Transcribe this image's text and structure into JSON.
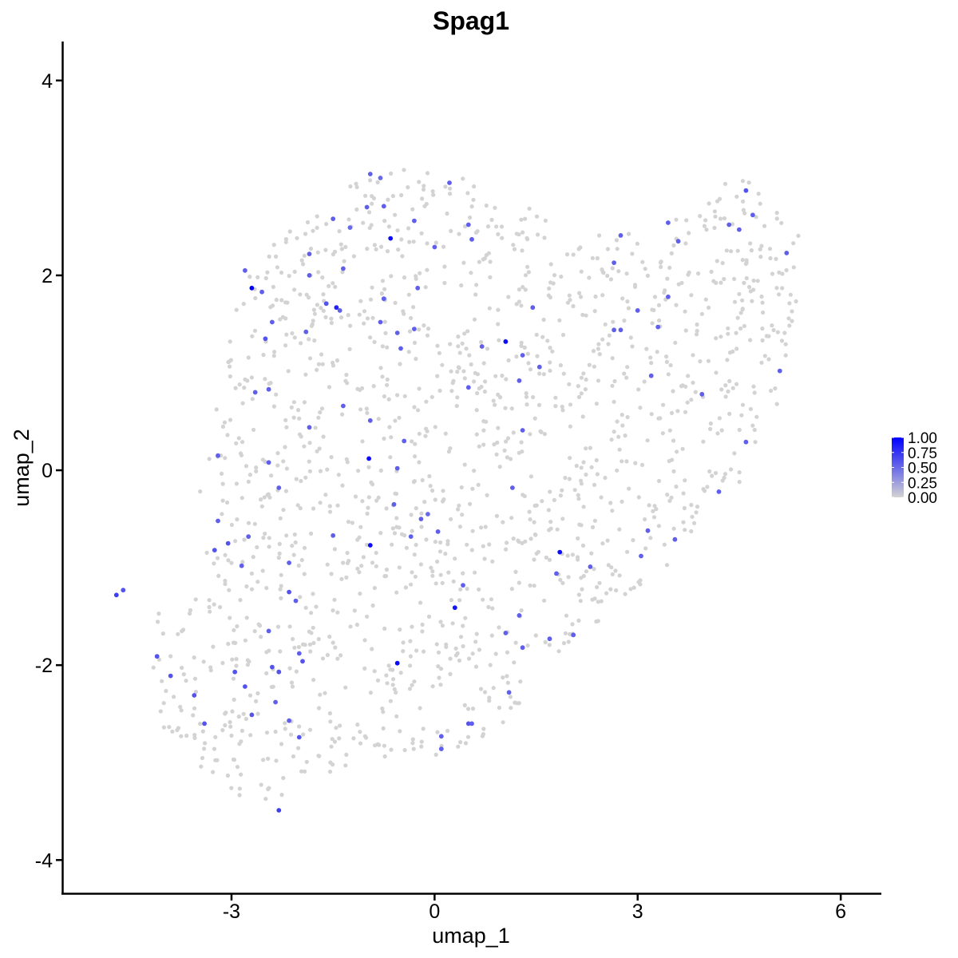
{
  "chart_data": {
    "type": "scatter",
    "title": "Spag1",
    "xlabel": "umap_1",
    "ylabel": "umap_2",
    "xlim": [
      -5.5,
      6.6
    ],
    "ylim": [
      -4.35,
      4.4
    ],
    "x_ticks": [
      -3,
      0,
      3,
      6
    ],
    "y_ticks": [
      -4,
      -2,
      0,
      2,
      4
    ],
    "x_tick_labels": [
      "-3",
      "0",
      "3",
      "6"
    ],
    "y_tick_labels": [
      "-4",
      "-2",
      "0",
      "2",
      "4"
    ],
    "grid": false,
    "legend": {
      "position": "right",
      "type": "colorbar",
      "labels": [
        "1.00",
        "0.75",
        "0.50",
        "0.25",
        "0.00"
      ],
      "values": [
        1.0,
        0.75,
        0.5,
        0.25,
        0.0
      ],
      "low_color": "#d3d3d3",
      "high_color": "#0000ff"
    },
    "background_point_color": "#d3d3d3",
    "background_cells": {
      "region_polygon": [
        [
          -4.75,
          -1.25
        ],
        [
          -4.5,
          -1.2
        ],
        [
          -4.0,
          -1.5
        ],
        [
          -3.5,
          -1.2
        ],
        [
          -3.3,
          -0.6
        ],
        [
          -3.6,
          -0.4
        ],
        [
          -3.3,
          0.2
        ],
        [
          -3.2,
          0.8
        ],
        [
          -3.0,
          1.4
        ],
        [
          -2.9,
          1.9
        ],
        [
          -2.5,
          2.2
        ],
        [
          -2.1,
          2.6
        ],
        [
          -1.6,
          2.7
        ],
        [
          -1.2,
          3.0
        ],
        [
          -0.7,
          3.1
        ],
        [
          0.2,
          3.15
        ],
        [
          0.8,
          2.8
        ],
        [
          1.5,
          2.7
        ],
        [
          2.0,
          2.3
        ],
        [
          2.7,
          2.5
        ],
        [
          3.3,
          2.6
        ],
        [
          4.0,
          2.7
        ],
        [
          4.4,
          3.1
        ],
        [
          4.9,
          2.8
        ],
        [
          5.4,
          2.4
        ],
        [
          5.4,
          1.6
        ],
        [
          5.1,
          0.7
        ],
        [
          4.8,
          0.0
        ],
        [
          4.2,
          -0.4
        ],
        [
          3.6,
          -0.9
        ],
        [
          3.0,
          -1.2
        ],
        [
          2.6,
          -1.6
        ],
        [
          2.0,
          -1.8
        ],
        [
          1.5,
          -2.2
        ],
        [
          1.0,
          -2.6
        ],
        [
          0.5,
          -2.9
        ],
        [
          0.0,
          -3.0
        ],
        [
          -0.6,
          -3.0
        ],
        [
          -1.3,
          -3.2
        ],
        [
          -1.9,
          -3.3
        ],
        [
          -2.4,
          -3.5
        ],
        [
          -3.0,
          -3.3
        ],
        [
          -3.6,
          -3.0
        ],
        [
          -4.1,
          -2.6
        ],
        [
          -4.4,
          -2.0
        ],
        [
          -4.2,
          -1.6
        ]
      ],
      "approx_count": 1500
    },
    "expressing_cells": [
      {
        "x": -2.7,
        "y": 1.87,
        "v": 1.0
      },
      {
        "x": -0.65,
        "y": 2.38,
        "v": 0.95
      },
      {
        "x": 1.05,
        "y": 1.32,
        "v": 0.95
      },
      {
        "x": -1.45,
        "y": 1.67,
        "v": 0.85
      },
      {
        "x": -0.97,
        "y": 0.12,
        "v": 0.95
      },
      {
        "x": -0.95,
        "y": -0.77,
        "v": 0.95
      },
      {
        "x": 1.85,
        "y": -0.84,
        "v": 0.95
      },
      {
        "x": 0.3,
        "y": -1.41,
        "v": 0.9
      },
      {
        "x": -0.55,
        "y": -1.98,
        "v": 0.95
      },
      {
        "x": -4.7,
        "y": -1.28,
        "v": 0.7
      },
      {
        "x": -4.6,
        "y": -1.23,
        "v": 0.6
      },
      {
        "x": -4.1,
        "y": -1.91,
        "v": 0.6
      },
      {
        "x": -3.9,
        "y": -2.11,
        "v": 0.6
      },
      {
        "x": -3.55,
        "y": -2.31,
        "v": 0.6
      },
      {
        "x": -3.4,
        "y": -2.6,
        "v": 0.6
      },
      {
        "x": -3.25,
        "y": -0.82,
        "v": 0.6
      },
      {
        "x": -3.2,
        "y": -0.52,
        "v": 0.55
      },
      {
        "x": -3.05,
        "y": -0.75,
        "v": 0.6
      },
      {
        "x": -3.2,
        "y": 0.15,
        "v": 0.55
      },
      {
        "x": -2.95,
        "y": -2.07,
        "v": 0.6
      },
      {
        "x": -2.8,
        "y": -2.22,
        "v": 0.6
      },
      {
        "x": -2.7,
        "y": -2.51,
        "v": 0.6
      },
      {
        "x": -2.85,
        "y": -0.98,
        "v": 0.55
      },
      {
        "x": -2.75,
        "y": -0.68,
        "v": 0.55
      },
      {
        "x": -2.8,
        "y": 2.05,
        "v": 0.55
      },
      {
        "x": -2.65,
        "y": 0.8,
        "v": 0.55
      },
      {
        "x": -2.55,
        "y": 1.83,
        "v": 0.55
      },
      {
        "x": -2.5,
        "y": 1.35,
        "v": 0.6
      },
      {
        "x": -2.45,
        "y": 0.83,
        "v": 0.55
      },
      {
        "x": -2.45,
        "y": 0.08,
        "v": 0.55
      },
      {
        "x": -2.4,
        "y": 1.52,
        "v": 0.55
      },
      {
        "x": -2.45,
        "y": -1.65,
        "v": 0.55
      },
      {
        "x": -2.4,
        "y": -2.02,
        "v": 0.6
      },
      {
        "x": -2.35,
        "y": -2.38,
        "v": 0.55
      },
      {
        "x": -2.3,
        "y": -2.07,
        "v": 0.6
      },
      {
        "x": -2.3,
        "y": -3.49,
        "v": 0.7
      },
      {
        "x": -2.3,
        "y": -0.18,
        "v": 0.55
      },
      {
        "x": -2.15,
        "y": -0.95,
        "v": 0.55
      },
      {
        "x": -2.15,
        "y": -1.25,
        "v": 0.6
      },
      {
        "x": -2.15,
        "y": -2.57,
        "v": 0.55
      },
      {
        "x": -2.05,
        "y": -1.34,
        "v": 0.55
      },
      {
        "x": -2.0,
        "y": -1.88,
        "v": 0.55
      },
      {
        "x": -2.0,
        "y": -2.74,
        "v": 0.6
      },
      {
        "x": -1.95,
        "y": -1.96,
        "v": 0.6
      },
      {
        "x": -1.9,
        "y": 1.42,
        "v": 0.55
      },
      {
        "x": -1.85,
        "y": 2.22,
        "v": 0.55
      },
      {
        "x": -1.85,
        "y": 2.0,
        "v": 0.55
      },
      {
        "x": -1.85,
        "y": 0.44,
        "v": 0.55
      },
      {
        "x": -1.6,
        "y": 1.71,
        "v": 0.6
      },
      {
        "x": -1.5,
        "y": 2.58,
        "v": 0.55
      },
      {
        "x": -1.4,
        "y": 1.64,
        "v": 0.55
      },
      {
        "x": -1.35,
        "y": 2.07,
        "v": 0.55
      },
      {
        "x": -1.35,
        "y": 0.66,
        "v": 0.55
      },
      {
        "x": -1.5,
        "y": -0.67,
        "v": 0.55
      },
      {
        "x": -1.25,
        "y": 2.49,
        "v": 0.5
      },
      {
        "x": -1.0,
        "y": 2.7,
        "v": 0.55
      },
      {
        "x": -0.95,
        "y": 3.04,
        "v": 0.55
      },
      {
        "x": -0.95,
        "y": 0.51,
        "v": 0.55
      },
      {
        "x": -0.8,
        "y": 3.0,
        "v": 0.5
      },
      {
        "x": -0.75,
        "y": 1.76,
        "v": 0.55
      },
      {
        "x": -0.8,
        "y": 1.52,
        "v": 0.55
      },
      {
        "x": -0.75,
        "y": 2.71,
        "v": 0.55
      },
      {
        "x": -0.55,
        "y": 1.41,
        "v": 0.55
      },
      {
        "x": -0.5,
        "y": 1.25,
        "v": 0.55
      },
      {
        "x": -0.6,
        "y": -0.35,
        "v": 0.55
      },
      {
        "x": -0.55,
        "y": 0.02,
        "v": 0.55
      },
      {
        "x": -0.45,
        "y": 0.3,
        "v": 0.55
      },
      {
        "x": -0.3,
        "y": 2.56,
        "v": 0.55
      },
      {
        "x": -0.3,
        "y": 1.45,
        "v": 0.55
      },
      {
        "x": -0.25,
        "y": 1.87,
        "v": 0.55
      },
      {
        "x": -0.35,
        "y": -0.68,
        "v": 0.55
      },
      {
        "x": -0.2,
        "y": -0.5,
        "v": 0.55
      },
      {
        "x": -0.1,
        "y": -0.45,
        "v": 0.5
      },
      {
        "x": 0.0,
        "y": 2.29,
        "v": 0.55
      },
      {
        "x": 0.05,
        "y": -0.63,
        "v": 0.55
      },
      {
        "x": 0.1,
        "y": -2.73,
        "v": 0.55
      },
      {
        "x": 0.1,
        "y": -2.86,
        "v": 0.55
      },
      {
        "x": 0.22,
        "y": 2.95,
        "v": 0.55
      },
      {
        "x": 0.42,
        "y": -1.18,
        "v": 0.55
      },
      {
        "x": 0.5,
        "y": 2.52,
        "v": 0.55
      },
      {
        "x": 0.5,
        "y": 0.85,
        "v": 0.55
      },
      {
        "x": 0.5,
        "y": -2.6,
        "v": 0.6
      },
      {
        "x": 0.55,
        "y": 2.37,
        "v": 0.55
      },
      {
        "x": 0.55,
        "y": -2.6,
        "v": 0.55
      },
      {
        "x": 0.7,
        "y": 1.27,
        "v": 0.55
      },
      {
        "x": 1.05,
        "y": -1.67,
        "v": 0.55
      },
      {
        "x": 1.1,
        "y": -2.28,
        "v": 0.55
      },
      {
        "x": 1.15,
        "y": -0.18,
        "v": 0.55
      },
      {
        "x": 1.25,
        "y": 0.92,
        "v": 0.55
      },
      {
        "x": 1.25,
        "y": -1.49,
        "v": 0.55
      },
      {
        "x": 1.3,
        "y": -1.82,
        "v": 0.55
      },
      {
        "x": 1.3,
        "y": 0.41,
        "v": 0.55
      },
      {
        "x": 1.3,
        "y": 1.18,
        "v": 0.55
      },
      {
        "x": 1.45,
        "y": 1.67,
        "v": 0.55
      },
      {
        "x": 1.55,
        "y": 1.06,
        "v": 0.55
      },
      {
        "x": 1.7,
        "y": -1.73,
        "v": 0.55
      },
      {
        "x": 1.8,
        "y": -1.06,
        "v": 0.55
      },
      {
        "x": 2.05,
        "y": -1.69,
        "v": 0.55
      },
      {
        "x": 2.3,
        "y": -0.99,
        "v": 0.55
      },
      {
        "x": 2.65,
        "y": 2.13,
        "v": 0.55
      },
      {
        "x": 2.65,
        "y": 1.44,
        "v": 0.55
      },
      {
        "x": 2.75,
        "y": 1.44,
        "v": 0.55
      },
      {
        "x": 2.75,
        "y": 2.41,
        "v": 0.55
      },
      {
        "x": 3.0,
        "y": 1.64,
        "v": 0.55
      },
      {
        "x": 3.05,
        "y": -0.88,
        "v": 0.55
      },
      {
        "x": 3.15,
        "y": -0.62,
        "v": 0.55
      },
      {
        "x": 3.2,
        "y": 0.97,
        "v": 0.55
      },
      {
        "x": 3.3,
        "y": 1.47,
        "v": 0.55
      },
      {
        "x": 3.45,
        "y": 1.78,
        "v": 0.55
      },
      {
        "x": 3.45,
        "y": 2.54,
        "v": 0.55
      },
      {
        "x": 3.55,
        "y": -0.71,
        "v": 0.55
      },
      {
        "x": 3.6,
        "y": 2.35,
        "v": 0.55
      },
      {
        "x": 3.95,
        "y": 0.78,
        "v": 0.55
      },
      {
        "x": 4.2,
        "y": -0.22,
        "v": 0.55
      },
      {
        "x": 4.35,
        "y": 2.52,
        "v": 0.55
      },
      {
        "x": 4.5,
        "y": 2.47,
        "v": 0.55
      },
      {
        "x": 4.6,
        "y": 0.29,
        "v": 0.55
      },
      {
        "x": 4.6,
        "y": 2.87,
        "v": 0.6
      },
      {
        "x": 4.7,
        "y": 2.62,
        "v": 0.55
      },
      {
        "x": 5.1,
        "y": 1.02,
        "v": 0.55
      },
      {
        "x": 5.2,
        "y": 2.23,
        "v": 0.55
      }
    ]
  }
}
